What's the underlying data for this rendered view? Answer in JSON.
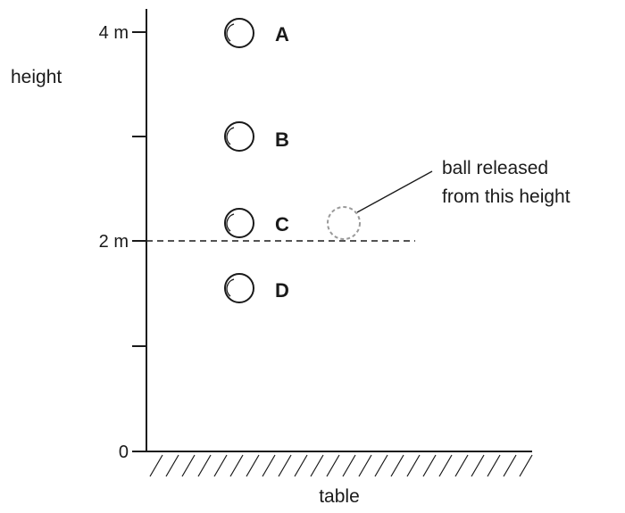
{
  "axis": {
    "title": "height",
    "tick_labels": {
      "top": "4 m",
      "middle": "2 m",
      "bottom": "0"
    }
  },
  "balls": [
    {
      "label": "A"
    },
    {
      "label": "B"
    },
    {
      "label": "C"
    },
    {
      "label": "D"
    }
  ],
  "annotation": {
    "line1": "ball released",
    "line2": "from this height"
  },
  "surface": {
    "label": "table"
  },
  "colors": {
    "ink": "#1a1a1a",
    "released_ball": "#9a9a9a"
  }
}
